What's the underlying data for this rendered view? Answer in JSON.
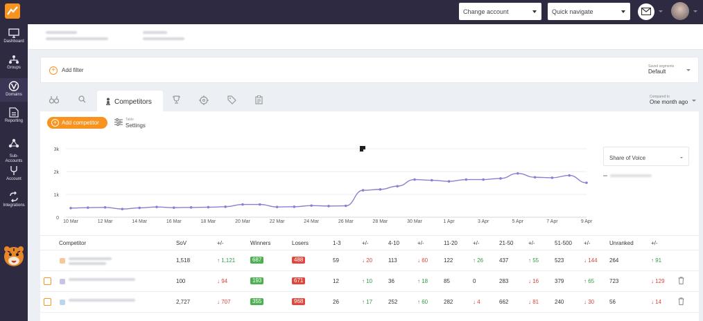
{
  "topbar": {
    "change_account": "Change account",
    "quick_navigate": "Quick navigate"
  },
  "sidebar": {
    "items": [
      {
        "label": "Dashboard",
        "icon": "monitor-icon"
      },
      {
        "label": "Groups",
        "icon": "groups-icon"
      },
      {
        "label": "Domains",
        "icon": "domains-icon"
      },
      {
        "label": "Reporting",
        "icon": "report-icon"
      },
      {
        "label": "Sub-\nAccounts",
        "icon": "sub-accounts-icon"
      },
      {
        "label": "Account",
        "icon": "account-icon"
      },
      {
        "label": "Integrations",
        "icon": "integrations-icon"
      }
    ],
    "active": "Domains"
  },
  "filterbar": {
    "add_filter": "Add filter",
    "segments_label": "Saved segments",
    "segments_value": "Default"
  },
  "tabs": {
    "active_label": "Competitors",
    "compared_label": "Compared to",
    "compared_value": "One month ago"
  },
  "toolbar": {
    "add_competitor": "Add competitor",
    "settings_label": "Table",
    "settings_value": "Settings"
  },
  "sov_dropdown": "Share of Voice",
  "chart_data": {
    "type": "line",
    "x": [
      "10 Mar",
      "11 Mar",
      "12 Mar",
      "13 Mar",
      "14 Mar",
      "15 Mar",
      "16 Mar",
      "17 Mar",
      "18 Mar",
      "19 Mar",
      "20 Mar",
      "21 Mar",
      "22 Mar",
      "23 Mar",
      "24 Mar",
      "25 Mar",
      "26 Mar",
      "27 Mar",
      "28 Mar",
      "29 Mar",
      "30 Mar",
      "31 Mar",
      "1 Apr",
      "2 Apr",
      "3 Apr",
      "4 Apr",
      "5 Apr",
      "6 Apr",
      "7 Apr",
      "8 Apr",
      "9 Apr"
    ],
    "x_tick_labels": [
      "10 Mar",
      "12 Mar",
      "14 Mar",
      "16 Mar",
      "18 Mar",
      "20 Mar",
      "22 Mar",
      "24 Mar",
      "26 Mar",
      "28 Mar",
      "30 Mar",
      "1 Apr",
      "3 Apr",
      "5 Apr",
      "7 Apr",
      "9 Apr"
    ],
    "y_tick_labels": [
      "0",
      "1k",
      "2k",
      "3k"
    ],
    "series": [
      {
        "values": [
          400,
          420,
          430,
          360,
          410,
          450,
          420,
          430,
          440,
          460,
          560,
          560,
          450,
          460,
          510,
          490,
          500,
          1180,
          1220,
          1360,
          1650,
          1620,
          1570,
          1650,
          1650,
          1700,
          1920,
          1750,
          1730,
          1830,
          1510
        ]
      }
    ],
    "ylim": [
      0,
      3000
    ],
    "grid": true,
    "color": "#8b7fd0"
  },
  "table": {
    "headers": [
      "Competitor",
      "SoV",
      "+/-",
      "Winners",
      "Losers",
      "1-3",
      "+/-",
      "4-10",
      "+/-",
      "11-20",
      "+/-",
      "21-50",
      "+/-",
      "51-500",
      "+/-",
      "Unranked",
      "+/-"
    ],
    "rows": [
      {
        "sov": "1,518",
        "sov_d": "1,121",
        "sov_dir": "up",
        "winners": "687",
        "losers": "488",
        "r13": "59",
        "r13_d": "20",
        "r13_dir": "down",
        "r410": "113",
        "r410_d": "60",
        "r410_dir": "down",
        "r1120": "122",
        "r1120_d": "26",
        "r1120_dir": "up",
        "r2150": "437",
        "r2150_d": "55",
        "r2150_dir": "up",
        "r51500": "523",
        "r51500_d": "144",
        "r51500_dir": "down",
        "unranked": "264",
        "unranked_d": "91",
        "unranked_dir": "up"
      },
      {
        "sov": "100",
        "sov_d": "94",
        "sov_dir": "down",
        "winners": "193",
        "losers": "671",
        "r13": "12",
        "r13_d": "10",
        "r13_dir": "up",
        "r410": "36",
        "r410_d": "18",
        "r410_dir": "up",
        "r1120": "85",
        "r1120_d": "0",
        "r1120_dir": "none",
        "r2150": "283",
        "r2150_d": "16",
        "r2150_dir": "down",
        "r51500": "379",
        "r51500_d": "65",
        "r51500_dir": "up",
        "unranked": "723",
        "unranked_d": "129",
        "unranked_dir": "down"
      },
      {
        "sov": "2,727",
        "sov_d": "707",
        "sov_dir": "down",
        "winners": "355",
        "losers": "968",
        "r13": "26",
        "r13_d": "17",
        "r13_dir": "up",
        "r410": "252",
        "r410_d": "60",
        "r410_dir": "up",
        "r1120": "282",
        "r1120_d": "4",
        "r1120_dir": "down",
        "r2150": "662",
        "r2150_d": "81",
        "r2150_dir": "down",
        "r51500": "240",
        "r51500_d": "30",
        "r51500_dir": "down",
        "unranked": "56",
        "unranked_d": "14",
        "unranked_dir": "down"
      }
    ]
  },
  "colors": {
    "sidebar": "#2e2a42",
    "accent": "#f7931e",
    "winners": "#4caf50",
    "losers": "#e0463b",
    "line": "#8b7fd0"
  }
}
